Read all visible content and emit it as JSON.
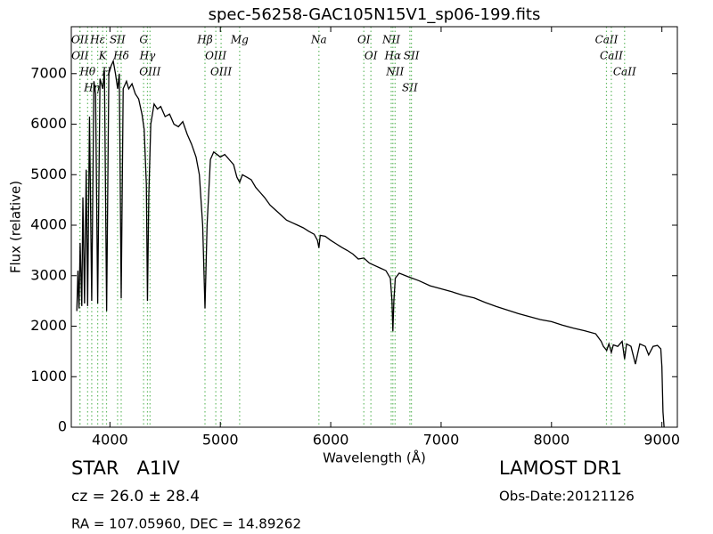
{
  "chart_data": {
    "type": "line",
    "title": "spec-56258-GAC105N15V1_sp06-199.fits",
    "xlabel": "Wavelength (Å)",
    "ylabel": "Flux (relative)",
    "xlim": [
      3650,
      9140
    ],
    "ylim": [
      0,
      7930
    ],
    "xticks": [
      4000,
      5000,
      6000,
      7000,
      8000,
      9000
    ],
    "yticks": [
      0,
      1000,
      2000,
      3000,
      4000,
      5000,
      6000,
      7000
    ],
    "x": [
      3700,
      3710,
      3720,
      3730,
      3745,
      3755,
      3770,
      3785,
      3798,
      3815,
      3835,
      3855,
      3870,
      3889,
      3910,
      3935,
      3950,
      3970,
      3990,
      4010,
      4030,
      4050,
      4070,
      4085,
      4102,
      4120,
      4150,
      4170,
      4200,
      4230,
      4260,
      4290,
      4310,
      4330,
      4340,
      4352,
      4370,
      4400,
      4430,
      4460,
      4500,
      4540,
      4580,
      4620,
      4660,
      4700,
      4740,
      4780,
      4810,
      4840,
      4861,
      4880,
      4910,
      4940,
      4970,
      5000,
      5040,
      5080,
      5120,
      5150,
      5175,
      5200,
      5240,
      5280,
      5320,
      5360,
      5400,
      5450,
      5500,
      5550,
      5600,
      5650,
      5700,
      5750,
      5800,
      5850,
      5880,
      5893,
      5905,
      5950,
      6000,
      6050,
      6100,
      6150,
      6200,
      6250,
      6300,
      6350,
      6400,
      6450,
      6500,
      6540,
      6555,
      6563,
      6572,
      6585,
      6620,
      6700,
      6800,
      6900,
      7000,
      7100,
      7200,
      7300,
      7400,
      7500,
      7600,
      7700,
      7800,
      7900,
      8000,
      8100,
      8200,
      8300,
      8400,
      8450,
      8470,
      8500,
      8520,
      8542,
      8560,
      8600,
      8640,
      8662,
      8680,
      8720,
      8760,
      8800,
      8850,
      8880,
      8920,
      8960,
      8990,
      9000,
      9010,
      9020
    ],
    "series": [
      {
        "name": "flux",
        "color": "#000000",
        "values": [
          2300,
          3100,
          2350,
          3650,
          2400,
          4550,
          2450,
          5100,
          2400,
          6150,
          2500,
          6850,
          6600,
          2450,
          6900,
          6700,
          7050,
          2300,
          7000,
          7150,
          7250,
          7000,
          6700,
          7000,
          2550,
          6700,
          6850,
          6700,
          6800,
          6600,
          6500,
          6200,
          5900,
          4800,
          2500,
          4600,
          6000,
          6400,
          6300,
          6350,
          6150,
          6200,
          6000,
          5950,
          6050,
          5800,
          5600,
          5350,
          5000,
          4000,
          2350,
          4000,
          5300,
          5450,
          5400,
          5350,
          5400,
          5300,
          5200,
          4950,
          4850,
          5000,
          4950,
          4900,
          4750,
          4650,
          4550,
          4400,
          4300,
          4200,
          4100,
          4050,
          4000,
          3950,
          3880,
          3820,
          3700,
          3550,
          3800,
          3780,
          3700,
          3630,
          3560,
          3500,
          3430,
          3330,
          3350,
          3250,
          3200,
          3150,
          3100,
          2950,
          2500,
          1900,
          2500,
          2950,
          3050,
          2980,
          2900,
          2800,
          2740,
          2680,
          2610,
          2560,
          2470,
          2390,
          2320,
          2250,
          2190,
          2130,
          2090,
          2020,
          1960,
          1910,
          1850,
          1700,
          1600,
          1520,
          1650,
          1480,
          1630,
          1600,
          1700,
          1350,
          1650,
          1600,
          1250,
          1650,
          1600,
          1430,
          1600,
          1620,
          1550,
          1200,
          300,
          0
        ]
      }
    ],
    "lines": [
      {
        "label": "OII",
        "wavelength": 3727
      },
      {
        "label": "OII",
        "wavelength": 3729
      },
      {
        "label": "Hθ",
        "wavelength": 3798
      },
      {
        "label": "Hη",
        "wavelength": 3835
      },
      {
        "label": "Hε",
        "wavelength": 3889
      },
      {
        "label": "K",
        "wavelength": 3934
      },
      {
        "label": "H",
        "wavelength": 3969
      },
      {
        "label": "SII",
        "wavelength": 4069
      },
      {
        "label": "Hδ",
        "wavelength": 4102
      },
      {
        "label": "G",
        "wavelength": 4305
      },
      {
        "label": "Hγ",
        "wavelength": 4340
      },
      {
        "label": "OIII",
        "wavelength": 4363
      },
      {
        "label": "Hβ",
        "wavelength": 4861
      },
      {
        "label": "OIII",
        "wavelength": 4959
      },
      {
        "label": "OIII",
        "wavelength": 5007
      },
      {
        "label": "Mg",
        "wavelength": 5175
      },
      {
        "label": "Na",
        "wavelength": 5893
      },
      {
        "label": "OI",
        "wavelength": 6300
      },
      {
        "label": "OI",
        "wavelength": 6364
      },
      {
        "label": "NII",
        "wavelength": 6548
      },
      {
        "label": "Hα",
        "wavelength": 6563
      },
      {
        "label": "NII",
        "wavelength": 6583
      },
      {
        "label": "SII",
        "wavelength": 6717
      },
      {
        "label": "SII",
        "wavelength": 6731
      },
      {
        "label": "CaII",
        "wavelength": 8498
      },
      {
        "label": "CaII",
        "wavelength": 8542
      },
      {
        "label": "CaII",
        "wavelength": 8662
      }
    ],
    "line_color": "#66bb66",
    "annotations": [
      "STAR   A1IV",
      "cz = 26.0 ± 28.4",
      "RA = 107.05960, DEC = 14.89262",
      "LAMOST DR1",
      "Obs-Date:20121126"
    ]
  }
}
